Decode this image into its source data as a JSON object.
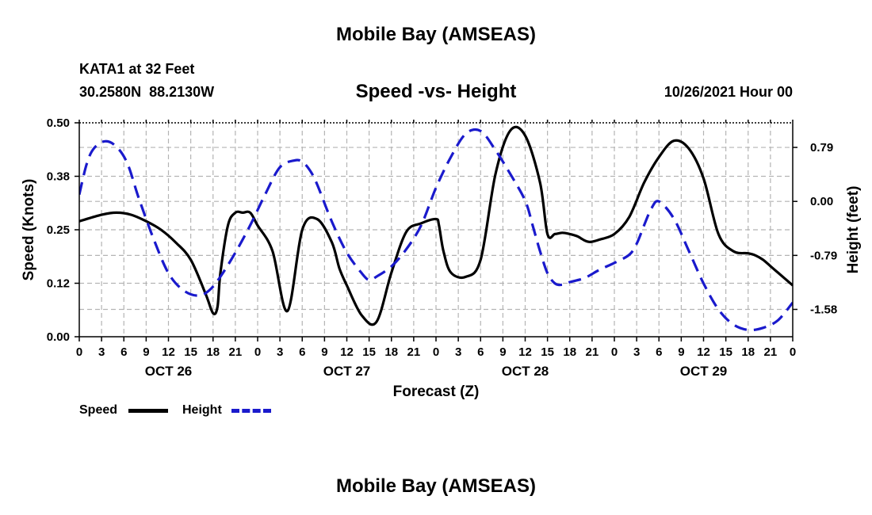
{
  "page": {
    "title": "Mobile Bay (AMSEAS)",
    "station": "KATA1 at 32 Feet",
    "coords": "30.2580N  88.2130W",
    "chart_title": "Speed -vs- Height",
    "datetime": "10/26/2021 Hour 00",
    "footer_title": "Mobile Bay (AMSEAS)"
  },
  "legend": [
    {
      "label": "Speed",
      "color": "#000000"
    },
    {
      "label": "Height",
      "color": "#1a1acc"
    }
  ],
  "chart_data": {
    "type": "line",
    "title": "Speed -vs- Height",
    "xlabel": "Forecast (Z)",
    "ylabel": "Speed (Knots)",
    "y2label": "Height (feet)",
    "xlim": [
      0,
      96
    ],
    "ylim": [
      0,
      0.5
    ],
    "y2lim": [
      -1.98,
      1.15
    ],
    "x_tick_values": [
      0,
      3,
      6,
      9,
      12,
      15,
      18,
      21,
      24,
      27,
      30,
      33,
      36,
      39,
      42,
      45,
      48,
      51,
      54,
      57,
      60,
      63,
      66,
      69,
      72,
      75,
      78,
      81,
      84,
      87,
      90,
      93,
      96
    ],
    "x_tick_labels": [
      "0",
      "3",
      "6",
      "9",
      "12",
      "15",
      "18",
      "21",
      "0",
      "3",
      "6",
      "9",
      "12",
      "15",
      "18",
      "21",
      "0",
      "3",
      "6",
      "9",
      "12",
      "15",
      "18",
      "21",
      "0",
      "3",
      "6",
      "9",
      "12",
      "15",
      "18",
      "21",
      "0"
    ],
    "day_labels": [
      {
        "x": 12,
        "label": "OCT 26"
      },
      {
        "x": 36,
        "label": "OCT 27"
      },
      {
        "x": 60,
        "label": "OCT 28"
      },
      {
        "x": 84,
        "label": "OCT 29"
      }
    ],
    "y_ticks": [
      {
        "value": 0,
        "label": "0.00"
      },
      {
        "value": 0.125,
        "label": "0.12"
      },
      {
        "value": 0.25,
        "label": "0.25"
      },
      {
        "value": 0.375,
        "label": "0.38"
      },
      {
        "value": 0.5,
        "label": "0.50"
      }
    ],
    "y2_ticks": [
      {
        "value": 0.79,
        "label": "0.79"
      },
      {
        "value": 0.0,
        "label": "0.00"
      },
      {
        "value": -0.79,
        "label": "-0.79"
      },
      {
        "value": -1.58,
        "label": "-1.58"
      }
    ],
    "series": [
      {
        "name": "Speed",
        "axis": "left",
        "color": "#000000",
        "dash": "solid",
        "x": [
          0,
          3,
          5,
          7,
          9,
          11,
          13,
          15,
          17,
          18,
          18.6,
          19,
          20,
          21,
          22,
          23,
          24,
          26,
          28,
          30,
          32,
          34,
          35,
          36,
          38,
          40,
          42,
          44,
          46,
          48,
          48.4,
          49,
          50,
          52,
          54,
          56,
          58,
          60,
          62,
          63,
          64,
          65,
          66,
          67,
          67.5,
          68,
          68.5,
          69,
          70,
          72,
          74,
          76,
          78,
          80,
          82,
          84,
          86,
          88,
          90,
          91,
          92,
          93,
          94,
          95,
          96
        ],
        "y": [
          0.27,
          0.285,
          0.29,
          0.285,
          0.27,
          0.25,
          0.22,
          0.18,
          0.1,
          0.055,
          0.07,
          0.15,
          0.26,
          0.29,
          0.29,
          0.29,
          0.26,
          0.2,
          0.06,
          0.25,
          0.275,
          0.22,
          0.16,
          0.12,
          0.05,
          0.035,
          0.15,
          0.245,
          0.265,
          0.275,
          0.26,
          0.2,
          0.15,
          0.14,
          0.18,
          0.38,
          0.482,
          0.47,
          0.36,
          0.24,
          0.24,
          0.243,
          0.24,
          0.235,
          0.23,
          0.225,
          0.222,
          0.222,
          0.227,
          0.24,
          0.28,
          0.36,
          0.42,
          0.458,
          0.44,
          0.37,
          0.24,
          0.2,
          0.195,
          0.19,
          0.18,
          0.165,
          0.15,
          0.135,
          0.12
        ]
      },
      {
        "name": "Height",
        "axis": "right",
        "color": "#1a1acc",
        "dash": "dashed",
        "x": [
          0,
          1,
          2,
          3.5,
          5,
          6.5,
          8,
          10,
          12,
          14,
          16,
          17.5,
          19,
          21,
          23,
          25,
          27,
          29,
          30,
          31,
          32,
          34,
          36,
          38,
          39,
          40,
          42,
          44,
          46,
          48,
          50,
          52,
          54,
          56,
          58,
          60,
          61,
          62,
          63,
          64,
          65,
          66,
          68,
          70,
          72,
          74,
          75,
          76,
          77,
          78,
          80,
          82,
          84,
          86,
          88,
          90,
          92,
          94,
          96
        ],
        "y": [
          0.1,
          0.55,
          0.78,
          0.88,
          0.8,
          0.55,
          0.05,
          -0.55,
          -1.05,
          -1.3,
          -1.38,
          -1.3,
          -1.1,
          -0.75,
          -0.35,
          0.1,
          0.5,
          0.6,
          0.58,
          0.46,
          0.25,
          -0.3,
          -0.75,
          -1.05,
          -1.15,
          -1.1,
          -0.95,
          -0.7,
          -0.35,
          0.2,
          0.65,
          0.99,
          1.03,
          0.75,
          0.4,
          0.01,
          -0.35,
          -0.73,
          -1.05,
          -1.2,
          -1.22,
          -1.18,
          -1.12,
          -1.0,
          -0.9,
          -0.78,
          -0.62,
          -0.35,
          -0.1,
          0.0,
          -0.25,
          -0.72,
          -1.2,
          -1.58,
          -1.8,
          -1.88,
          -1.85,
          -1.74,
          -1.48
        ]
      }
    ]
  }
}
